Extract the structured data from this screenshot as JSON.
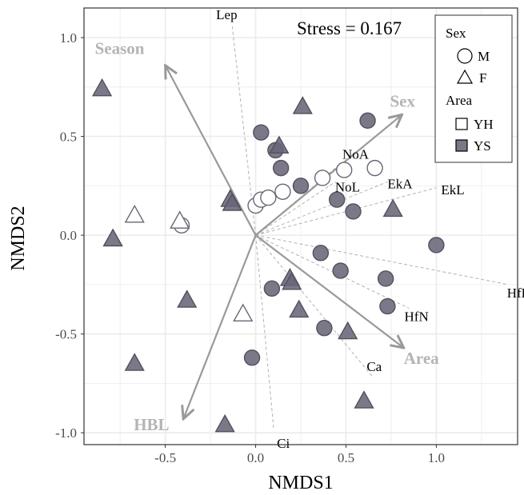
{
  "chart_data": {
    "type": "scatter",
    "xlabel": "NMDS1",
    "ylabel": "NMDS2",
    "xlim": [
      -0.95,
      1.45
    ],
    "ylim": [
      -1.06,
      1.15
    ],
    "xticks": [
      -0.5,
      0.0,
      0.5,
      1.0
    ],
    "xtick_labels": [
      "-0.5",
      "0.0",
      "0.5",
      "1.0"
    ],
    "yticks": [
      -1.0,
      -0.5,
      0.0,
      0.5,
      1.0
    ],
    "ytick_labels": [
      "-1.0",
      "-0.5",
      "0.0",
      "0.5",
      "1.0"
    ],
    "grid": true,
    "stress_text": "Stress = 0.167",
    "legend": {
      "placement": "top-right",
      "sex_title": "Sex",
      "sex_items": [
        {
          "label": "M",
          "shape": "circle"
        },
        {
          "label": "F",
          "shape": "triangle"
        }
      ],
      "area_title": "Area",
      "area_items": [
        {
          "label": "YH",
          "fill": "#ffffff"
        },
        {
          "label": "YS",
          "fill": "#7a7786"
        }
      ]
    },
    "colors": {
      "YH_fill": "#ffffff",
      "YS_fill": "#6a6577",
      "point_stroke": "#52505e",
      "arrow": "#999999",
      "dashed": "#aaaaaa"
    },
    "points": [
      {
        "x": 0.0,
        "y": 0.15,
        "shape": "circle",
        "area": "YH"
      },
      {
        "x": 0.03,
        "y": 0.18,
        "shape": "circle",
        "area": "YH"
      },
      {
        "x": 0.07,
        "y": 0.19,
        "shape": "circle",
        "area": "YH"
      },
      {
        "x": 0.15,
        "y": 0.22,
        "shape": "circle",
        "area": "YH"
      },
      {
        "x": 0.37,
        "y": 0.29,
        "shape": "circle",
        "area": "YH"
      },
      {
        "x": 0.49,
        "y": 0.33,
        "shape": "circle",
        "area": "YH"
      },
      {
        "x": 0.66,
        "y": 0.34,
        "shape": "circle",
        "area": "YH"
      },
      {
        "x": -0.41,
        "y": 0.05,
        "shape": "circle",
        "area": "YH"
      },
      {
        "x": -0.67,
        "y": 0.1,
        "shape": "triangle",
        "area": "YH"
      },
      {
        "x": -0.42,
        "y": 0.07,
        "shape": "triangle",
        "area": "YH"
      },
      {
        "x": -0.79,
        "y": -0.02,
        "shape": "triangle",
        "area": "YH"
      },
      {
        "x": -0.07,
        "y": -0.4,
        "shape": "triangle",
        "area": "YH"
      },
      {
        "x": 0.03,
        "y": 0.52,
        "shape": "circle",
        "area": "YS"
      },
      {
        "x": 0.11,
        "y": 0.43,
        "shape": "circle",
        "area": "YS"
      },
      {
        "x": 0.14,
        "y": 0.34,
        "shape": "circle",
        "area": "YS"
      },
      {
        "x": 0.25,
        "y": 0.25,
        "shape": "circle",
        "area": "YS"
      },
      {
        "x": 0.62,
        "y": 0.58,
        "shape": "circle",
        "area": "YS"
      },
      {
        "x": 0.45,
        "y": 0.18,
        "shape": "circle",
        "area": "YS"
      },
      {
        "x": 0.54,
        "y": 0.12,
        "shape": "circle",
        "area": "YS"
      },
      {
        "x": 1.0,
        "y": -0.05,
        "shape": "circle",
        "area": "YS"
      },
      {
        "x": 0.36,
        "y": -0.09,
        "shape": "circle",
        "area": "YS"
      },
      {
        "x": 0.47,
        "y": -0.18,
        "shape": "circle",
        "area": "YS"
      },
      {
        "x": 0.72,
        "y": -0.22,
        "shape": "circle",
        "area": "YS"
      },
      {
        "x": 0.73,
        "y": -0.36,
        "shape": "circle",
        "area": "YS"
      },
      {
        "x": 0.09,
        "y": -0.27,
        "shape": "circle",
        "area": "YS"
      },
      {
        "x": 0.38,
        "y": -0.47,
        "shape": "circle",
        "area": "YS"
      },
      {
        "x": -0.02,
        "y": -0.62,
        "shape": "circle",
        "area": "YS"
      },
      {
        "x": -0.85,
        "y": 0.74,
        "shape": "triangle",
        "area": "YS"
      },
      {
        "x": 0.26,
        "y": 0.65,
        "shape": "triangle",
        "area": "YS"
      },
      {
        "x": 0.13,
        "y": 0.45,
        "shape": "triangle",
        "area": "YS"
      },
      {
        "x": -0.14,
        "y": 0.18,
        "shape": "triangle",
        "area": "YS"
      },
      {
        "x": -0.13,
        "y": 0.16,
        "shape": "triangle",
        "area": "YS"
      },
      {
        "x": 0.76,
        "y": 0.13,
        "shape": "triangle",
        "area": "YS"
      },
      {
        "x": -0.79,
        "y": -0.02,
        "shape": "triangle",
        "area": "YS"
      },
      {
        "x": -0.38,
        "y": -0.33,
        "shape": "triangle",
        "area": "YS"
      },
      {
        "x": 0.19,
        "y": -0.22,
        "shape": "triangle",
        "area": "YS"
      },
      {
        "x": 0.2,
        "y": -0.24,
        "shape": "triangle",
        "area": "YS"
      },
      {
        "x": 0.24,
        "y": -0.38,
        "shape": "triangle",
        "area": "YS"
      },
      {
        "x": 0.51,
        "y": -0.49,
        "shape": "triangle",
        "area": "YS"
      },
      {
        "x": -0.67,
        "y": -0.65,
        "shape": "triangle",
        "area": "YS"
      },
      {
        "x": 0.6,
        "y": -0.84,
        "shape": "triangle",
        "area": "YS"
      },
      {
        "x": -0.17,
        "y": -0.96,
        "shape": "triangle",
        "area": "YS"
      }
    ],
    "env_vectors": [
      {
        "label": "Lep",
        "x": -0.13,
        "y": 1.06
      },
      {
        "label": "NoA",
        "x": 0.48,
        "y": 0.37
      },
      {
        "label": "NoL",
        "x": 0.44,
        "y": 0.27
      },
      {
        "label": "EkA",
        "x": 0.73,
        "y": 0.27
      },
      {
        "label": "EkL",
        "x": 1.0,
        "y": 0.24
      },
      {
        "label": "HfN",
        "x": 0.85,
        "y": -0.37
      },
      {
        "label": "HfL",
        "x": 1.4,
        "y": -0.25
      },
      {
        "label": "Ca",
        "x": 0.65,
        "y": -0.72
      },
      {
        "label": "Ci",
        "x": 0.1,
        "y": -0.98
      }
    ],
    "factor_vectors": [
      {
        "label": "Season",
        "x": -0.5,
        "y": 0.86
      },
      {
        "label": "Sex",
        "x": 0.81,
        "y": 0.61
      },
      {
        "label": "Area",
        "x": 0.82,
        "y": -0.57
      },
      {
        "label": "HBL",
        "x": -0.4,
        "y": -0.93
      }
    ]
  }
}
